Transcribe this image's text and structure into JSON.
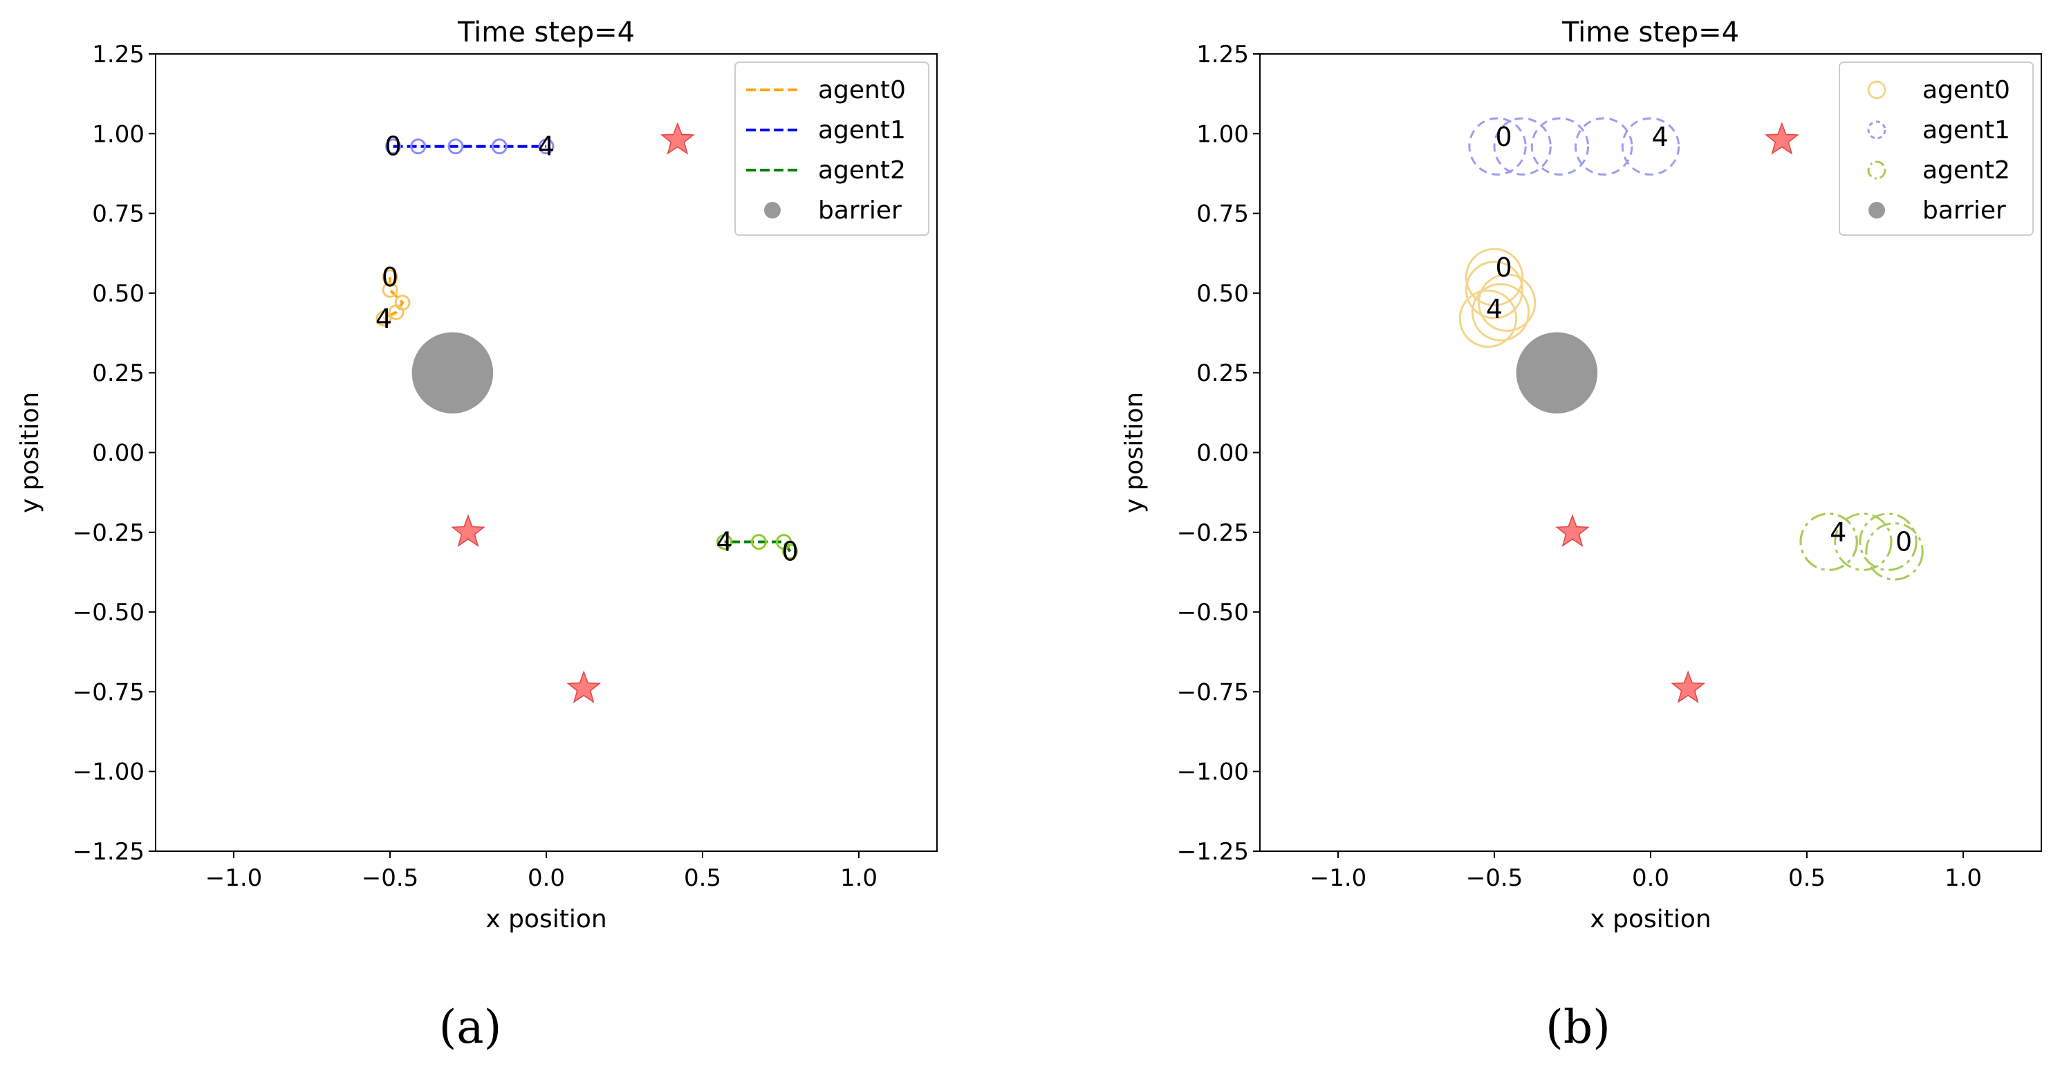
{
  "chart_data": [
    {
      "type": "scatter",
      "panel_label": "(a)",
      "title": "Time step=4",
      "xlabel": "x position",
      "ylabel": "y position",
      "xlim": [
        -1.25,
        1.25
      ],
      "ylim": [
        -1.25,
        1.25
      ],
      "xticks": [
        -1.0,
        -0.5,
        0.0,
        0.5,
        1.0
      ],
      "xtick_labels": [
        "−1.0",
        "−0.5",
        "0.0",
        "0.5",
        "1.0"
      ],
      "yticks": [
        1.25,
        1.0,
        0.75,
        0.5,
        0.25,
        0.0,
        -0.25,
        -0.5,
        -0.75,
        -1.0,
        -1.25
      ],
      "ytick_labels": [
        "1.25",
        "1.00",
        "0.75",
        "0.50",
        "0.25",
        "0.00",
        "−0.25",
        "−0.50",
        "−0.75",
        "−1.00",
        "−1.25"
      ],
      "legend": {
        "location": "upper right",
        "entries": [
          {
            "label": "agent0",
            "kind": "dashed-line",
            "color": "#ffa500"
          },
          {
            "label": "agent1",
            "kind": "dashed-line",
            "color": "#0000ff"
          },
          {
            "label": "agent2",
            "kind": "dashed-line",
            "color": "#008000"
          },
          {
            "label": "barrier",
            "kind": "dot",
            "color": "#999999"
          }
        ]
      },
      "series": [
        {
          "name": "agent0",
          "line_color": "#ffa500",
          "marker_color": "#f5c76a",
          "marker_radius": 0.022,
          "points": [
            [
              -0.5,
              0.55
            ],
            [
              -0.5,
              0.51
            ],
            [
              -0.46,
              0.47
            ],
            [
              -0.48,
              0.44
            ],
            [
              -0.52,
              0.42
            ]
          ],
          "labels": [
            {
              "text": "0",
              "at": [
                -0.5,
                0.55
              ]
            },
            {
              "text": "4",
              "at": [
                -0.52,
                0.42
              ]
            }
          ]
        },
        {
          "name": "agent1",
          "line_color": "#0000ff",
          "marker_color": "#8b8bff",
          "marker_radius": 0.022,
          "points": [
            [
              -0.49,
              0.96
            ],
            [
              -0.41,
              0.96
            ],
            [
              -0.29,
              0.96
            ],
            [
              -0.15,
              0.96
            ],
            [
              0.0,
              0.96
            ]
          ],
          "labels": [
            {
              "text": "0",
              "at": [
                -0.49,
                0.96
              ]
            },
            {
              "text": "4",
              "at": [
                0.0,
                0.96
              ]
            }
          ]
        },
        {
          "name": "agent2",
          "line_color": "#008000",
          "marker_color": "#8fc92f",
          "marker_radius": 0.022,
          "points": [
            [
              0.78,
              -0.31
            ],
            [
              0.76,
              -0.28
            ],
            [
              0.68,
              -0.28
            ],
            [
              0.57,
              -0.28
            ],
            [
              0.57,
              -0.28
            ]
          ],
          "labels": [
            {
              "text": "0",
              "at": [
                0.78,
                -0.31
              ]
            },
            {
              "text": "4",
              "at": [
                0.57,
                -0.28
              ]
            }
          ]
        }
      ],
      "barrier": {
        "x": -0.3,
        "y": 0.25,
        "radius": 0.13,
        "color": "#999999"
      },
      "goals": [
        {
          "x": 0.42,
          "y": 0.98
        },
        {
          "x": -0.25,
          "y": -0.25
        },
        {
          "x": 0.12,
          "y": -0.74
        }
      ],
      "goal_color": "#ff6666"
    },
    {
      "type": "scatter",
      "panel_label": "(b)",
      "title": "Time step=4",
      "xlabel": "x position",
      "ylabel": "y position",
      "xlim": [
        -1.25,
        1.25
      ],
      "ylim": [
        -1.25,
        1.25
      ],
      "xticks": [
        -1.0,
        -0.5,
        0.0,
        0.5,
        1.0
      ],
      "xtick_labels": [
        "−1.0",
        "−0.5",
        "0.0",
        "0.5",
        "1.0"
      ],
      "yticks": [
        1.25,
        1.0,
        0.75,
        0.5,
        0.25,
        0.0,
        -0.25,
        -0.5,
        -0.75,
        -1.0,
        -1.25
      ],
      "ytick_labels": [
        "1.25",
        "1.00",
        "0.75",
        "0.50",
        "0.25",
        "0.00",
        "−0.25",
        "−0.50",
        "−0.75",
        "−1.00",
        "−1.25"
      ],
      "legend": {
        "location": "upper right",
        "entries": [
          {
            "label": "agent0",
            "kind": "circle-solid",
            "color": "#f5d58a"
          },
          {
            "label": "agent1",
            "kind": "circle-dashed",
            "color": "#9d9df0"
          },
          {
            "label": "agent2",
            "kind": "circle-dashdot",
            "color": "#a8cc55"
          },
          {
            "label": "barrier",
            "kind": "dot",
            "color": "#999999"
          }
        ]
      },
      "series": [
        {
          "name": "agent0",
          "marker_color": "#f5d58a",
          "marker_style": "solid",
          "marker_radius": 0.09,
          "points": [
            [
              -0.5,
              0.55
            ],
            [
              -0.5,
              0.51
            ],
            [
              -0.46,
              0.47
            ],
            [
              -0.48,
              0.44
            ],
            [
              -0.52,
              0.42
            ]
          ],
          "labels": [
            {
              "text": "0",
              "at": [
                -0.47,
                0.58
              ]
            },
            {
              "text": "4",
              "at": [
                -0.5,
                0.45
              ]
            }
          ]
        },
        {
          "name": "agent1",
          "marker_color": "#9d9df0",
          "marker_style": "dashed",
          "marker_radius": 0.09,
          "points": [
            [
              -0.49,
              0.96
            ],
            [
              -0.41,
              0.96
            ],
            [
              -0.29,
              0.96
            ],
            [
              -0.15,
              0.96
            ],
            [
              0.0,
              0.96
            ]
          ],
          "labels": [
            {
              "text": "0",
              "at": [
                -0.47,
                0.99
              ]
            },
            {
              "text": "4",
              "at": [
                0.03,
                0.99
              ]
            }
          ]
        },
        {
          "name": "agent2",
          "marker_color": "#a8cc55",
          "marker_style": "dashdot",
          "marker_radius": 0.09,
          "points": [
            [
              0.78,
              -0.31
            ],
            [
              0.76,
              -0.28
            ],
            [
              0.68,
              -0.28
            ],
            [
              0.57,
              -0.28
            ],
            [
              0.57,
              -0.28
            ]
          ],
          "labels": [
            {
              "text": "0",
              "at": [
                0.81,
                -0.28
              ]
            },
            {
              "text": "4",
              "at": [
                0.6,
                -0.25
              ]
            }
          ]
        }
      ],
      "barrier": {
        "x": -0.3,
        "y": 0.25,
        "radius": 0.13,
        "color": "#999999"
      },
      "goals": [
        {
          "x": 0.42,
          "y": 0.98
        },
        {
          "x": -0.25,
          "y": -0.25
        },
        {
          "x": 0.12,
          "y": -0.74
        }
      ],
      "goal_color": "#ff6666"
    }
  ]
}
